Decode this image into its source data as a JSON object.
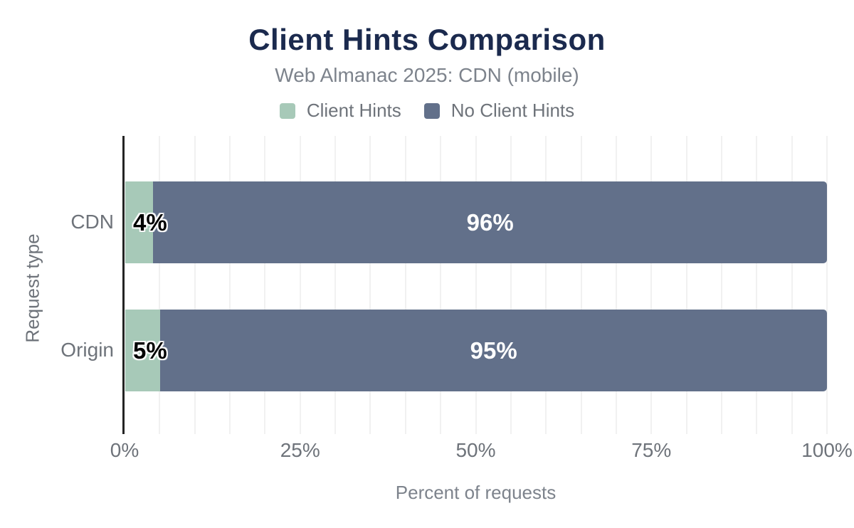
{
  "chart_data": {
    "type": "bar",
    "orientation": "horizontal",
    "stacked": true,
    "title": "Client Hints Comparison",
    "subtitle": "Web Almanac 2025: CDN (mobile)",
    "categories": [
      "CDN",
      "Origin"
    ],
    "series": [
      {
        "name": "Client Hints",
        "color": "#a7c9b8",
        "values": [
          4,
          5
        ],
        "labels": [
          "4%",
          "5%"
        ]
      },
      {
        "name": "No Client Hints",
        "color": "#62708a",
        "values": [
          96,
          95
        ],
        "labels": [
          "96%",
          "95%"
        ]
      }
    ],
    "xlabel": "Percent of requests",
    "ylabel": "Request type",
    "xlim": [
      0,
      100
    ],
    "xticks": [
      0,
      25,
      50,
      75,
      100
    ],
    "xtick_labels": [
      "0%",
      "25%",
      "50%",
      "75%",
      "100%"
    ],
    "minor_grid_step": 5,
    "grid": "vertical minor gridlines, light gray",
    "legend_position": "top-center",
    "colors": {
      "title": "#1b2a4e",
      "muted_text": "#6e737a",
      "subtitle_text": "#7d838c",
      "axis_line": "#242424",
      "gridline": "#f1f1f1",
      "bar_label_light": "#ffffff",
      "bar_label_dark": "#000000",
      "background": "#ffffff"
    }
  }
}
